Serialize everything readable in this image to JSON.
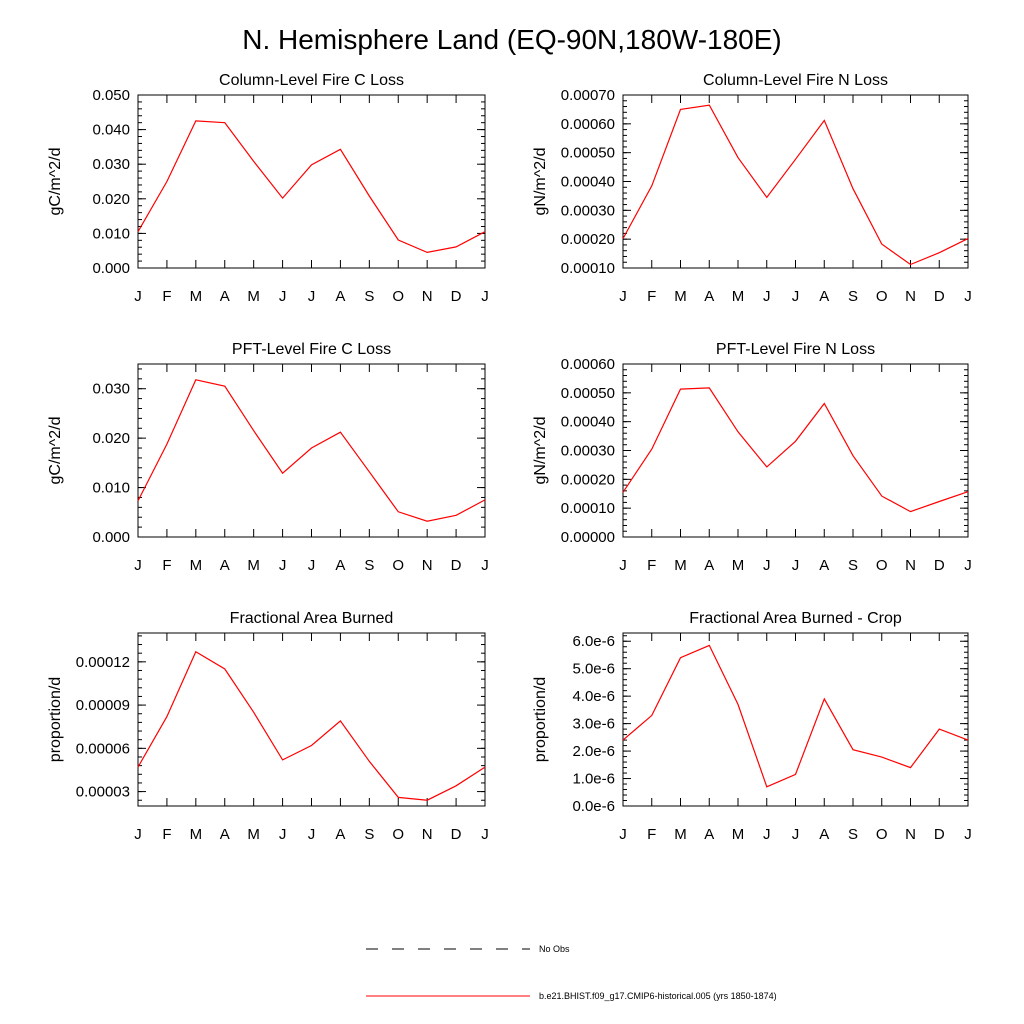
{
  "figure_title": "N. Hemisphere Land (EQ-90N,180W-180E)",
  "colors": {
    "model_line": "#ff0000",
    "obs_line": "#000000",
    "axes": "#000000"
  },
  "legend": {
    "entries": [
      {
        "label": "No Obs",
        "style": "dashed",
        "color": "#000000"
      },
      {
        "label": "b.e21.BHIST.f09_g17.CMIP6-historical.005 (yrs 1850-1874)",
        "style": "solid",
        "color": "#ff0000"
      }
    ]
  },
  "chart_data": [
    {
      "type": "line",
      "title": "Column-Level Fire C Loss",
      "xlabel": "",
      "ylabel": "gC/m^2/d",
      "categories": [
        "J",
        "F",
        "M",
        "A",
        "M",
        "J",
        "J",
        "A",
        "S",
        "O",
        "N",
        "D",
        "J"
      ],
      "series": [
        {
          "name": "b.e21.BHIST.f09_g17.CMIP6-historical.005 (yrs 1850-1874)",
          "values": [
            0.0105,
            0.025,
            0.0425,
            0.042,
            0.0308,
            0.0202,
            0.0298,
            0.0343,
            0.0208,
            0.0081,
            0.0045,
            0.0061,
            0.0105
          ]
        }
      ],
      "ylim": [
        0,
        0.05
      ],
      "yticks": [
        "0.000",
        "0.010",
        "0.020",
        "0.030",
        "0.040",
        "0.050"
      ],
      "ytick_values": [
        0,
        0.01,
        0.02,
        0.03,
        0.04,
        0.05
      ]
    },
    {
      "type": "line",
      "title": "Column-Level Fire N Loss",
      "xlabel": "",
      "ylabel": "gN/m^2/d",
      "categories": [
        "J",
        "F",
        "M",
        "A",
        "M",
        "J",
        "J",
        "A",
        "S",
        "O",
        "N",
        "D",
        "J"
      ],
      "series": [
        {
          "name": "b.e21.BHIST.f09_g17.CMIP6-historical.005 (yrs 1850-1874)",
          "values": [
            0.000202,
            0.000385,
            0.00065,
            0.000665,
            0.000483,
            0.000345,
            0.000477,
            0.000612,
            0.000375,
            0.000183,
            0.000112,
            0.000153,
            0.000202
          ]
        }
      ],
      "ylim": [
        0.0001,
        0.0007
      ],
      "yticks": [
        "0.00010",
        "0.00020",
        "0.00030",
        "0.00040",
        "0.00050",
        "0.00060",
        "0.00070"
      ],
      "ytick_values": [
        0.0001,
        0.0002,
        0.0003,
        0.0004,
        0.0005,
        0.0006,
        0.0007
      ]
    },
    {
      "type": "line",
      "title": "PFT-Level Fire C Loss",
      "xlabel": "",
      "ylabel": "gC/m^2/d",
      "categories": [
        "J",
        "F",
        "M",
        "A",
        "M",
        "J",
        "J",
        "A",
        "S",
        "O",
        "N",
        "D",
        "J"
      ],
      "series": [
        {
          "name": "b.e21.BHIST.f09_g17.CMIP6-historical.005 (yrs 1850-1874)",
          "values": [
            0.0073,
            0.0188,
            0.0318,
            0.0305,
            0.0215,
            0.0129,
            0.018,
            0.0212,
            0.0132,
            0.0051,
            0.0032,
            0.0044,
            0.0075
          ]
        }
      ],
      "ylim": [
        0,
        0.035
      ],
      "yticks": [
        "0.000",
        "0.010",
        "0.020",
        "0.030"
      ],
      "ytick_values": [
        0,
        0.01,
        0.02,
        0.03
      ]
    },
    {
      "type": "line",
      "title": "PFT-Level Fire N Loss",
      "xlabel": "",
      "ylabel": "gN/m^2/d",
      "categories": [
        "J",
        "F",
        "M",
        "A",
        "M",
        "J",
        "J",
        "A",
        "S",
        "O",
        "N",
        "D",
        "J"
      ],
      "series": [
        {
          "name": "b.e21.BHIST.f09_g17.CMIP6-historical.005 (yrs 1850-1874)",
          "values": [
            0.000155,
            0.000305,
            0.000513,
            0.000517,
            0.000365,
            0.000243,
            0.000332,
            0.000463,
            0.000282,
            0.000142,
            8.8e-05,
            0.000123,
            0.000157
          ]
        }
      ],
      "ylim": [
        0,
        0.0006
      ],
      "yticks": [
        "0.00000",
        "0.00010",
        "0.00020",
        "0.00030",
        "0.00040",
        "0.00050",
        "0.00060"
      ],
      "ytick_values": [
        0,
        0.0001,
        0.0002,
        0.0003,
        0.0004,
        0.0005,
        0.0006
      ]
    },
    {
      "type": "line",
      "title": "Fractional Area Burned",
      "xlabel": "",
      "ylabel": "proportion/d",
      "categories": [
        "J",
        "F",
        "M",
        "A",
        "M",
        "J",
        "J",
        "A",
        "S",
        "O",
        "N",
        "D",
        "J"
      ],
      "series": [
        {
          "name": "b.e21.BHIST.f09_g17.CMIP6-historical.005 (yrs 1850-1874)",
          "values": [
            4.7e-05,
            8.2e-05,
            0.000127,
            0.000115,
            8.5e-05,
            5.2e-05,
            6.2e-05,
            7.9e-05,
            5.1e-05,
            2.6e-05,
            2.4e-05,
            3.4e-05,
            4.7e-05
          ]
        }
      ],
      "ylim": [
        2e-05,
        0.00014
      ],
      "yticks": [
        "0.00003",
        "0.00006",
        "0.00009",
        "0.00012"
      ],
      "ytick_values": [
        3e-05,
        6e-05,
        9e-05,
        0.00012
      ]
    },
    {
      "type": "line",
      "title": "Fractional Area Burned - Crop",
      "xlabel": "",
      "ylabel": "proportion/d",
      "categories": [
        "J",
        "F",
        "M",
        "A",
        "M",
        "J",
        "J",
        "A",
        "S",
        "O",
        "N",
        "D",
        "J"
      ],
      "series": [
        {
          "name": "b.e21.BHIST.f09_g17.CMIP6-historical.005 (yrs 1850-1874)",
          "values": [
            2.4e-06,
            3.3e-06,
            5.4e-06,
            5.85e-06,
            3.7e-06,
            7e-07,
            1.15e-06,
            3.9e-06,
            2.05e-06,
            1.78e-06,
            1.4e-06,
            2.8e-06,
            2.4e-06
          ]
        }
      ],
      "ylim": [
        0,
        6.3e-06
      ],
      "yticks": [
        "0.0e-6",
        "1.0e-6",
        "2.0e-6",
        "3.0e-6",
        "4.0e-6",
        "5.0e-6",
        "6.0e-6"
      ],
      "ytick_values": [
        0,
        1e-06,
        2e-06,
        3e-06,
        4e-06,
        5e-06,
        6e-06
      ]
    }
  ]
}
